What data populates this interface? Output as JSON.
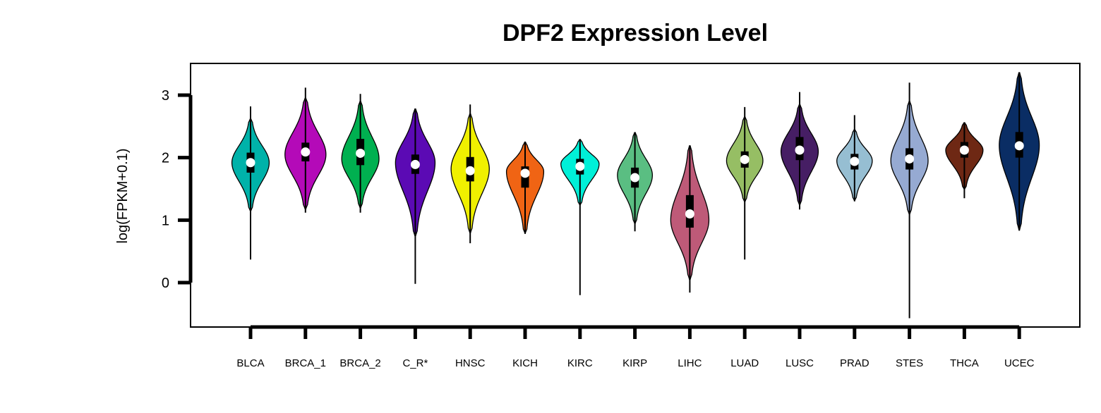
{
  "chart_data": {
    "type": "violin",
    "title": "DPF2 Expression Level",
    "xlabel": "",
    "ylabel": "log(FPKM+0.1)",
    "ylim": [
      -0.72,
      3.52
    ],
    "yticks": [
      0,
      1,
      2,
      3
    ],
    "grid": false,
    "legend": "none",
    "series": [
      {
        "name": "BLCA",
        "color": "#00B2A9",
        "min": 0.37,
        "max": 2.82,
        "q1": 1.76,
        "median": 1.92,
        "q3": 2.08,
        "wlow": 1.15,
        "whigh": 2.62,
        "mode": 1.92,
        "width": 0.8
      },
      {
        "name": "BRCA_1",
        "color": "#B40AB8",
        "min": 1.12,
        "max": 3.12,
        "q1": 1.94,
        "median": 2.09,
        "q3": 2.24,
        "wlow": 1.18,
        "whigh": 2.95,
        "mode": 2.05,
        "width": 0.88
      },
      {
        "name": "BRCA_2",
        "color": "#00B050",
        "min": 1.12,
        "max": 3.02,
        "q1": 1.88,
        "median": 2.07,
        "q3": 2.3,
        "wlow": 1.2,
        "whigh": 2.9,
        "mode": 1.98,
        "width": 0.8
      },
      {
        "name": "C_R*",
        "color": "#5B0AB4",
        "min": -0.02,
        "max": 2.78,
        "q1": 1.74,
        "median": 1.89,
        "q3": 2.05,
        "wlow": 0.75,
        "whigh": 2.78,
        "mode": 1.92,
        "width": 0.85
      },
      {
        "name": "HNSC",
        "color": "#F0F000",
        "min": 0.63,
        "max": 2.85,
        "q1": 1.62,
        "median": 1.79,
        "q3": 2.01,
        "wlow": 0.8,
        "whigh": 2.7,
        "mode": 1.82,
        "width": 0.82
      },
      {
        "name": "KICH",
        "color": "#F06414",
        "min": 0.78,
        "max": 2.25,
        "q1": 1.52,
        "median": 1.75,
        "q3": 1.86,
        "wlow": 0.8,
        "whigh": 2.25,
        "mode": 1.78,
        "width": 0.8
      },
      {
        "name": "KIRC",
        "color": "#00F0D8",
        "min": -0.2,
        "max": 2.29,
        "q1": 1.73,
        "median": 1.86,
        "q3": 1.98,
        "wlow": 1.25,
        "whigh": 2.29,
        "mode": 1.9,
        "width": 0.82
      },
      {
        "name": "KIRP",
        "color": "#5ABE82",
        "min": 0.82,
        "max": 2.41,
        "q1": 1.52,
        "median": 1.68,
        "q3": 1.84,
        "wlow": 0.95,
        "whigh": 2.4,
        "mode": 1.72,
        "width": 0.75
      },
      {
        "name": "LIHC",
        "color": "#BE5A78",
        "min": -0.16,
        "max": 2.19,
        "q1": 0.88,
        "median": 1.1,
        "q3": 1.4,
        "wlow": 0.05,
        "whigh": 2.19,
        "mode": 1.0,
        "width": 0.82
      },
      {
        "name": "LUAD",
        "color": "#96BE64",
        "min": 0.37,
        "max": 2.81,
        "q1": 1.84,
        "median": 1.97,
        "q3": 2.1,
        "wlow": 1.3,
        "whigh": 2.65,
        "mode": 1.95,
        "width": 0.78
      },
      {
        "name": "LUSC",
        "color": "#461E64",
        "min": 1.17,
        "max": 3.05,
        "q1": 1.96,
        "median": 2.12,
        "q3": 2.33,
        "wlow": 1.25,
        "whigh": 2.85,
        "mode": 2.1,
        "width": 0.8
      },
      {
        "name": "PRAD",
        "color": "#96BED2",
        "min": 1.3,
        "max": 2.68,
        "q1": 1.81,
        "median": 1.94,
        "q3": 2.06,
        "wlow": 1.32,
        "whigh": 2.45,
        "mode": 1.95,
        "width": 0.76
      },
      {
        "name": "STES",
        "color": "#96AAD2",
        "min": -0.57,
        "max": 3.2,
        "q1": 1.81,
        "median": 1.98,
        "q3": 2.15,
        "wlow": 1.1,
        "whigh": 2.9,
        "mode": 1.95,
        "width": 0.8
      },
      {
        "name": "THCA",
        "color": "#6E2814",
        "min": 1.35,
        "max": 2.56,
        "q1": 2.0,
        "median": 2.12,
        "q3": 2.25,
        "wlow": 1.5,
        "whigh": 2.56,
        "mode": 2.12,
        "width": 0.8
      },
      {
        "name": "UCEC",
        "color": "#0A2D64",
        "min": 0.83,
        "max": 3.36,
        "q1": 2.0,
        "median": 2.19,
        "q3": 2.41,
        "wlow": 0.85,
        "whigh": 3.36,
        "mode": 2.2,
        "width": 0.86
      }
    ]
  }
}
